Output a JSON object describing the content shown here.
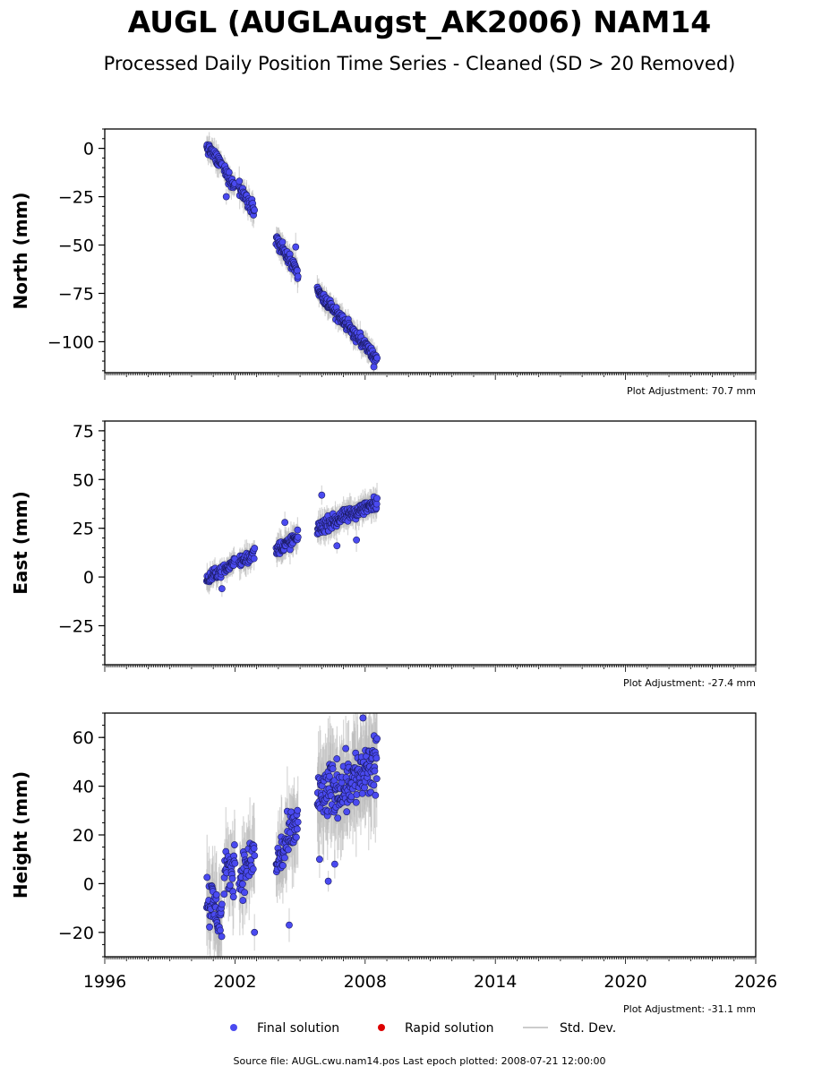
{
  "title": "AUGL (AUGLAugst_AK2006) NAM14",
  "subtitle": "Processed Daily Position Time Series - Cleaned (SD > 20 Removed)",
  "source_note": "Source file: AUGL.cwu.nam14.pos  Last epoch plotted: 2008-07-21 12:00:00",
  "legend": {
    "final": "Final solution",
    "rapid": "Rapid solution",
    "stddev": "Std. Dev."
  },
  "colors": {
    "final": "#4a4af0",
    "rapid": "#dd0000",
    "stddev": "#bbbbbb"
  },
  "chart_data": [
    {
      "type": "scatter",
      "ylabel": "North (mm)",
      "adjustment": "Plot Adjustment: 70.7 mm",
      "xlim": [
        1996,
        2026
      ],
      "ylim": [
        -116,
        10
      ],
      "yticks": [
        0,
        -25,
        -50,
        -75,
        -100
      ],
      "ytick_labels": [
        "0",
        "−25",
        "−50",
        "−75",
        "−100"
      ],
      "segments": [
        {
          "start": 2000.7,
          "end": 2001.4,
          "y0": 1,
          "y1": -9,
          "spread": 2.5,
          "count": 40
        },
        {
          "start": 2001.5,
          "end": 2002.0,
          "y0": -11,
          "y1": -20,
          "spread": 2.5,
          "count": 28
        },
        {
          "start": 2002.2,
          "end": 2002.9,
          "y0": -21,
          "y1": -31,
          "spread": 3,
          "count": 36
        },
        {
          "start": 2003.9,
          "end": 2004.9,
          "y0": -47,
          "y1": -65,
          "spread": 3,
          "count": 60
        },
        {
          "start": 2005.8,
          "end": 2008.55,
          "y0": -74,
          "y1": -109,
          "spread": 2.5,
          "count": 170
        }
      ],
      "outliers": [
        [
          2004.8,
          -51
        ],
        [
          2008.4,
          -113
        ],
        [
          2002.2,
          -17
        ],
        [
          2001.6,
          -25
        ]
      ]
    },
    {
      "type": "scatter",
      "ylabel": "East (mm)",
      "adjustment": "Plot Adjustment: -27.4 mm",
      "xlim": [
        1996,
        2026
      ],
      "ylim": [
        -45,
        80
      ],
      "yticks": [
        75,
        50,
        25,
        0,
        -25
      ],
      "ytick_labels": [
        "75",
        "50",
        "25",
        "0",
        "−25"
      ],
      "segments": [
        {
          "start": 2000.7,
          "end": 2001.4,
          "y0": -2,
          "y1": 4,
          "spread": 2.5,
          "count": 40
        },
        {
          "start": 2001.5,
          "end": 2002.0,
          "y0": 3,
          "y1": 8,
          "spread": 2.5,
          "count": 28
        },
        {
          "start": 2002.2,
          "end": 2002.9,
          "y0": 8,
          "y1": 12,
          "spread": 3,
          "count": 36
        },
        {
          "start": 2003.9,
          "end": 2004.9,
          "y0": 14,
          "y1": 20,
          "spread": 3,
          "count": 60
        },
        {
          "start": 2005.8,
          "end": 2008.55,
          "y0": 25,
          "y1": 38,
          "spread": 3,
          "count": 170
        }
      ],
      "outliers": [
        [
          2004.3,
          28
        ],
        [
          2006.0,
          42
        ],
        [
          2007.6,
          19
        ],
        [
          2006.7,
          16
        ],
        [
          2001.4,
          -6
        ]
      ]
    },
    {
      "type": "scatter",
      "ylabel": "Height (mm)",
      "adjustment": "Plot Adjustment: -31.1 mm",
      "xlim": [
        1996,
        2026
      ],
      "ylim": [
        -30,
        70
      ],
      "yticks": [
        60,
        40,
        20,
        0,
        -20
      ],
      "ytick_labels": [
        "60",
        "40",
        "20",
        "0",
        "−20"
      ],
      "xticks": [
        1996,
        2002,
        2008,
        2014,
        2020,
        2026
      ],
      "xtick_labels": [
        "1996",
        "2002",
        "2008",
        "2014",
        "2020",
        "2026"
      ],
      "segments": [
        {
          "start": 2000.7,
          "end": 2001.4,
          "y0": -5,
          "y1": -15,
          "spread": 9,
          "count": 45
        },
        {
          "start": 2001.5,
          "end": 2002.0,
          "y0": 2,
          "y1": 8,
          "spread": 8,
          "count": 30
        },
        {
          "start": 2002.2,
          "end": 2002.9,
          "y0": 2,
          "y1": 12,
          "spread": 8,
          "count": 38
        },
        {
          "start": 2003.9,
          "end": 2004.9,
          "y0": 8,
          "y1": 25,
          "spread": 8,
          "count": 60
        },
        {
          "start": 2005.8,
          "end": 2008.55,
          "y0": 35,
          "y1": 48,
          "spread": 10,
          "count": 180
        }
      ],
      "outliers": [
        [
          2005.9,
          10
        ],
        [
          2006.3,
          1
        ],
        [
          2006.6,
          8
        ],
        [
          2004.5,
          -17
        ],
        [
          2007.9,
          68
        ],
        [
          2002.9,
          -20
        ]
      ]
    }
  ]
}
